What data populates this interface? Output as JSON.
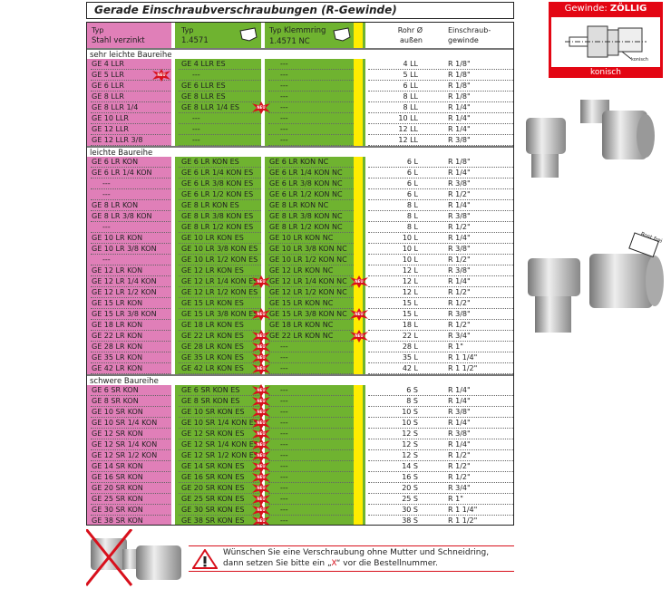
{
  "title": "Gerade Einschraubverschraubungen (R-Gewinde)",
  "header": {
    "col1_line1": "Typ",
    "col1_line2": "Stahl verzinkt",
    "col2_line1": "Typ",
    "col2_line2": "1.4571",
    "col3_line1a": "Typ ",
    "col3_line1b": "Klemmring",
    "col3_line2": "1.4571 NC",
    "col4_line1": "Rohr Ø",
    "col4_line2": "außen",
    "col5_line1": "Einschraub-",
    "col5_line2": "gewinde"
  },
  "new_badge_label": "NEU",
  "colors": {
    "pink": "#e07fb8",
    "green": "#6fb330",
    "yellow": "#ffec00",
    "red": "#e30613"
  },
  "sections": [
    {
      "title": "sehr leichte Baureihe",
      "rows": [
        [
          "GE 4 LLR",
          "GE 4 LLR  ES",
          "---",
          "4 LL",
          "R 1/8\"",
          []
        ],
        [
          "GE 5 LLR",
          "---",
          "---",
          "5 LL",
          "R 1/8\"",
          [
            1
          ]
        ],
        [
          "GE 6 LLR",
          "GE 6 LLR  ES",
          "---",
          "6 LL",
          "R 1/8\"",
          []
        ],
        [
          "GE 8 LLR",
          "GE 8 LLR  ES",
          "---",
          "8 LL",
          "R 1/8\"",
          []
        ],
        [
          "GE 8 LLR 1/4",
          "GE 8 LLR 1/4 ES",
          "---",
          "8 LL",
          "R 1/4\"",
          [
            2
          ]
        ],
        [
          "GE 10 LLR",
          "---",
          "---",
          "10 LL",
          "R 1/4\"",
          []
        ],
        [
          "GE 12 LLR",
          "---",
          "---",
          "12 LL",
          "R 1/4\"",
          []
        ],
        [
          "GE 12 LLR 3/8",
          "---",
          "---",
          "12 LL",
          "R 3/8\"",
          []
        ]
      ]
    },
    {
      "title": "leichte Baureihe",
      "rows": [
        [
          "GE 6 LR KON",
          "GE 6 LR KON ES",
          "GE 6 LR KON NC",
          "6 L",
          "R 1/8\"",
          []
        ],
        [
          "GE 6 LR 1/4 KON",
          "GE 6 LR 1/4 KON ES",
          "GE 6 LR 1/4 KON NC",
          "6 L",
          "R 1/4\"",
          []
        ],
        [
          "---",
          "GE 6 LR 3/8 KON ES",
          "GE 6 LR 3/8 KON NC",
          "6 L",
          "R 3/8\"",
          []
        ],
        [
          "---",
          "GE 6 LR 1/2 KON ES",
          "GE 6 LR 1/2 KON NC",
          "6 L",
          "R 1/2\"",
          []
        ],
        [
          "GE 8 LR KON",
          "GE 8 LR KON ES",
          "GE 8 LR KON NC",
          "8 L",
          "R 1/4\"",
          []
        ],
        [
          "GE 8 LR 3/8 KON",
          "GE 8 LR 3/8 KON ES",
          "GE 8 LR 3/8 KON NC",
          "8 L",
          "R 3/8\"",
          []
        ],
        [
          "---",
          "GE 8 LR 1/2 KON ES",
          "GE 8 LR 1/2 KON NC",
          "8 L",
          "R 1/2\"",
          []
        ],
        [
          "GE 10 LR KON",
          "GE 10 LR KON ES",
          "GE 10 LR KON NC",
          "10 L",
          "R 1/4\"",
          []
        ],
        [
          "GE 10 LR 3/8 KON",
          "GE 10 LR 3/8 KON ES",
          "GE 10 LR 3/8 KON NC",
          "10 L",
          "R 3/8\"",
          []
        ],
        [
          "---",
          "GE 10 LR 1/2 KON ES",
          "GE 10 LR 1/2 KON NC",
          "10 L",
          "R 1/2\"",
          []
        ],
        [
          "GE 12 LR KON",
          "GE 12 LR KON ES",
          "GE 12 LR KON NC",
          "12 L",
          "R 3/8\"",
          []
        ],
        [
          "GE 12 LR 1/4 KON",
          "GE 12 LR 1/4 KON ES",
          "GE 12 LR 1/4 KON NC",
          "12 L",
          "R 1/4\"",
          [
            2,
            3
          ]
        ],
        [
          "GE 12 LR 1/2 KON",
          "GE 12 LR 1/2 KON ES",
          "GE 12 LR 1/2 KON NC",
          "12 L",
          "R 1/2\"",
          []
        ],
        [
          "GE 15 LR KON",
          "GE 15 LR KON ES",
          "GE 15 LR KON NC",
          "15 L",
          "R 1/2\"",
          []
        ],
        [
          "GE 15 LR 3/8 KON",
          "GE 15 LR 3/8 KON ES",
          "GE 15 LR 3/8 KON NC",
          "15 L",
          "R 3/8\"",
          [
            2,
            3
          ]
        ],
        [
          "GE 18 LR KON",
          "GE 18 LR KON ES",
          "GE 18 LR KON NC",
          "18 L",
          "R 1/2\"",
          []
        ],
        [
          "GE 22 LR KON",
          "GE 22 LR KON ES",
          "GE 22 LR KON NC",
          "22 L",
          "R 3/4\"",
          [
            2,
            3
          ]
        ],
        [
          "GE 28 LR KON",
          "GE 28 LR KON ES",
          "---",
          "28 L",
          "R 1\"",
          [
            2
          ]
        ],
        [
          "GE 35 LR KON",
          "GE 35 LR KON ES",
          "---",
          "35 L",
          "R 1 1/4\"",
          [
            2
          ]
        ],
        [
          "GE 42 LR KON",
          "GE 42 LR KON ES",
          "---",
          "42 L",
          "R 1 1/2\"",
          [
            2
          ]
        ]
      ]
    },
    {
      "title": "schwere Baureihe",
      "rows": [
        [
          "GE 6 SR KON",
          "GE 6 SR KON ES",
          "---",
          "6 S",
          "R 1/4\"",
          [
            2
          ]
        ],
        [
          "GE 8 SR KON",
          "GE 8 SR KON ES",
          "---",
          "8 S",
          "R 1/4\"",
          [
            2
          ]
        ],
        [
          "GE 10 SR KON",
          "GE 10 SR KON ES",
          "---",
          "10 S",
          "R 3/8\"",
          [
            2
          ]
        ],
        [
          "GE 10 SR 1/4 KON",
          "GE 10 SR 1/4 KON ES",
          "---",
          "10 S",
          "R 1/4\"",
          [
            2
          ]
        ],
        [
          "GE 12 SR KON",
          "GE 12 SR KON ES",
          "---",
          "12 S",
          "R 3/8\"",
          [
            2
          ]
        ],
        [
          "GE 12 SR 1/4 KON",
          "GE 12 SR 1/4 KON ES",
          "---",
          "12 S",
          "R 1/4\"",
          [
            2
          ]
        ],
        [
          "GE 12 SR 1/2 KON",
          "GE 12 SR 1/2 KON ES",
          "---",
          "12 S",
          "R 1/2\"",
          [
            2
          ]
        ],
        [
          "GE 14 SR KON",
          "GE 14 SR KON ES",
          "---",
          "14 S",
          "R 1/2\"",
          [
            2
          ]
        ],
        [
          "GE 16 SR KON",
          "GE 16 SR KON ES",
          "---",
          "16 S",
          "R 1/2\"",
          [
            2
          ]
        ],
        [
          "GE 20 SR KON",
          "GE 20 SR KON ES",
          "---",
          "20 S",
          "R 3/4\"",
          [
            2
          ]
        ],
        [
          "GE 25 SR KON",
          "GE 25 SR KON ES",
          "---",
          "25 S",
          "R 1\"",
          [
            2
          ]
        ],
        [
          "GE 30 SR KON",
          "GE 30 SR KON ES",
          "---",
          "30 S",
          "R 1 1/4\"",
          [
            2
          ]
        ],
        [
          "GE 38 SR KON",
          "GE 38 SR KON ES",
          "---",
          "38 S",
          "R 1 1/2\"",
          [
            2
          ]
        ]
      ]
    }
  ],
  "warning": {
    "line1": "Wünschen Sie eine Verschraubung ohne Mutter und Schneidring,",
    "line2a": "dann setzen Sie bitte ein „",
    "x": "X",
    "line2b": "“ vor die Bestellnummer."
  },
  "thread_box": {
    "title_a": "Gewinde: ",
    "title_b": "ZÖLLIG",
    "callout": "konisch",
    "footer": "konisch"
  },
  "rostfrei_tag": "Rost frei"
}
